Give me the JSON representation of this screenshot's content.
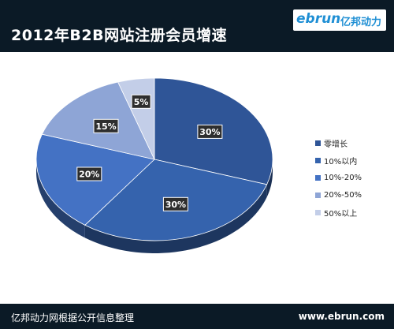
{
  "header": {
    "title": "2012年B2B网站注册会员增速",
    "brand_latin": "ebrun",
    "brand_cn": "亿邦动力"
  },
  "footer": {
    "source": "亿邦动力网根据公开信息整理",
    "url": "www.ebrun.com"
  },
  "chart_data": {
    "type": "pie",
    "title": "2012年B2B网站注册会员增速",
    "style": "3d",
    "legend_position": "right",
    "categories": [
      "零增长",
      "10%以内",
      "10%-20%",
      "20%-50%",
      "50%以上"
    ],
    "values": [
      30,
      30,
      20,
      15,
      5
    ],
    "labels": [
      "30%",
      "30%",
      "20%",
      "15%",
      "5%"
    ],
    "colors": [
      "#2f5597",
      "#3563ad",
      "#4472c4",
      "#8ea5d6",
      "#c3cee8"
    ]
  }
}
